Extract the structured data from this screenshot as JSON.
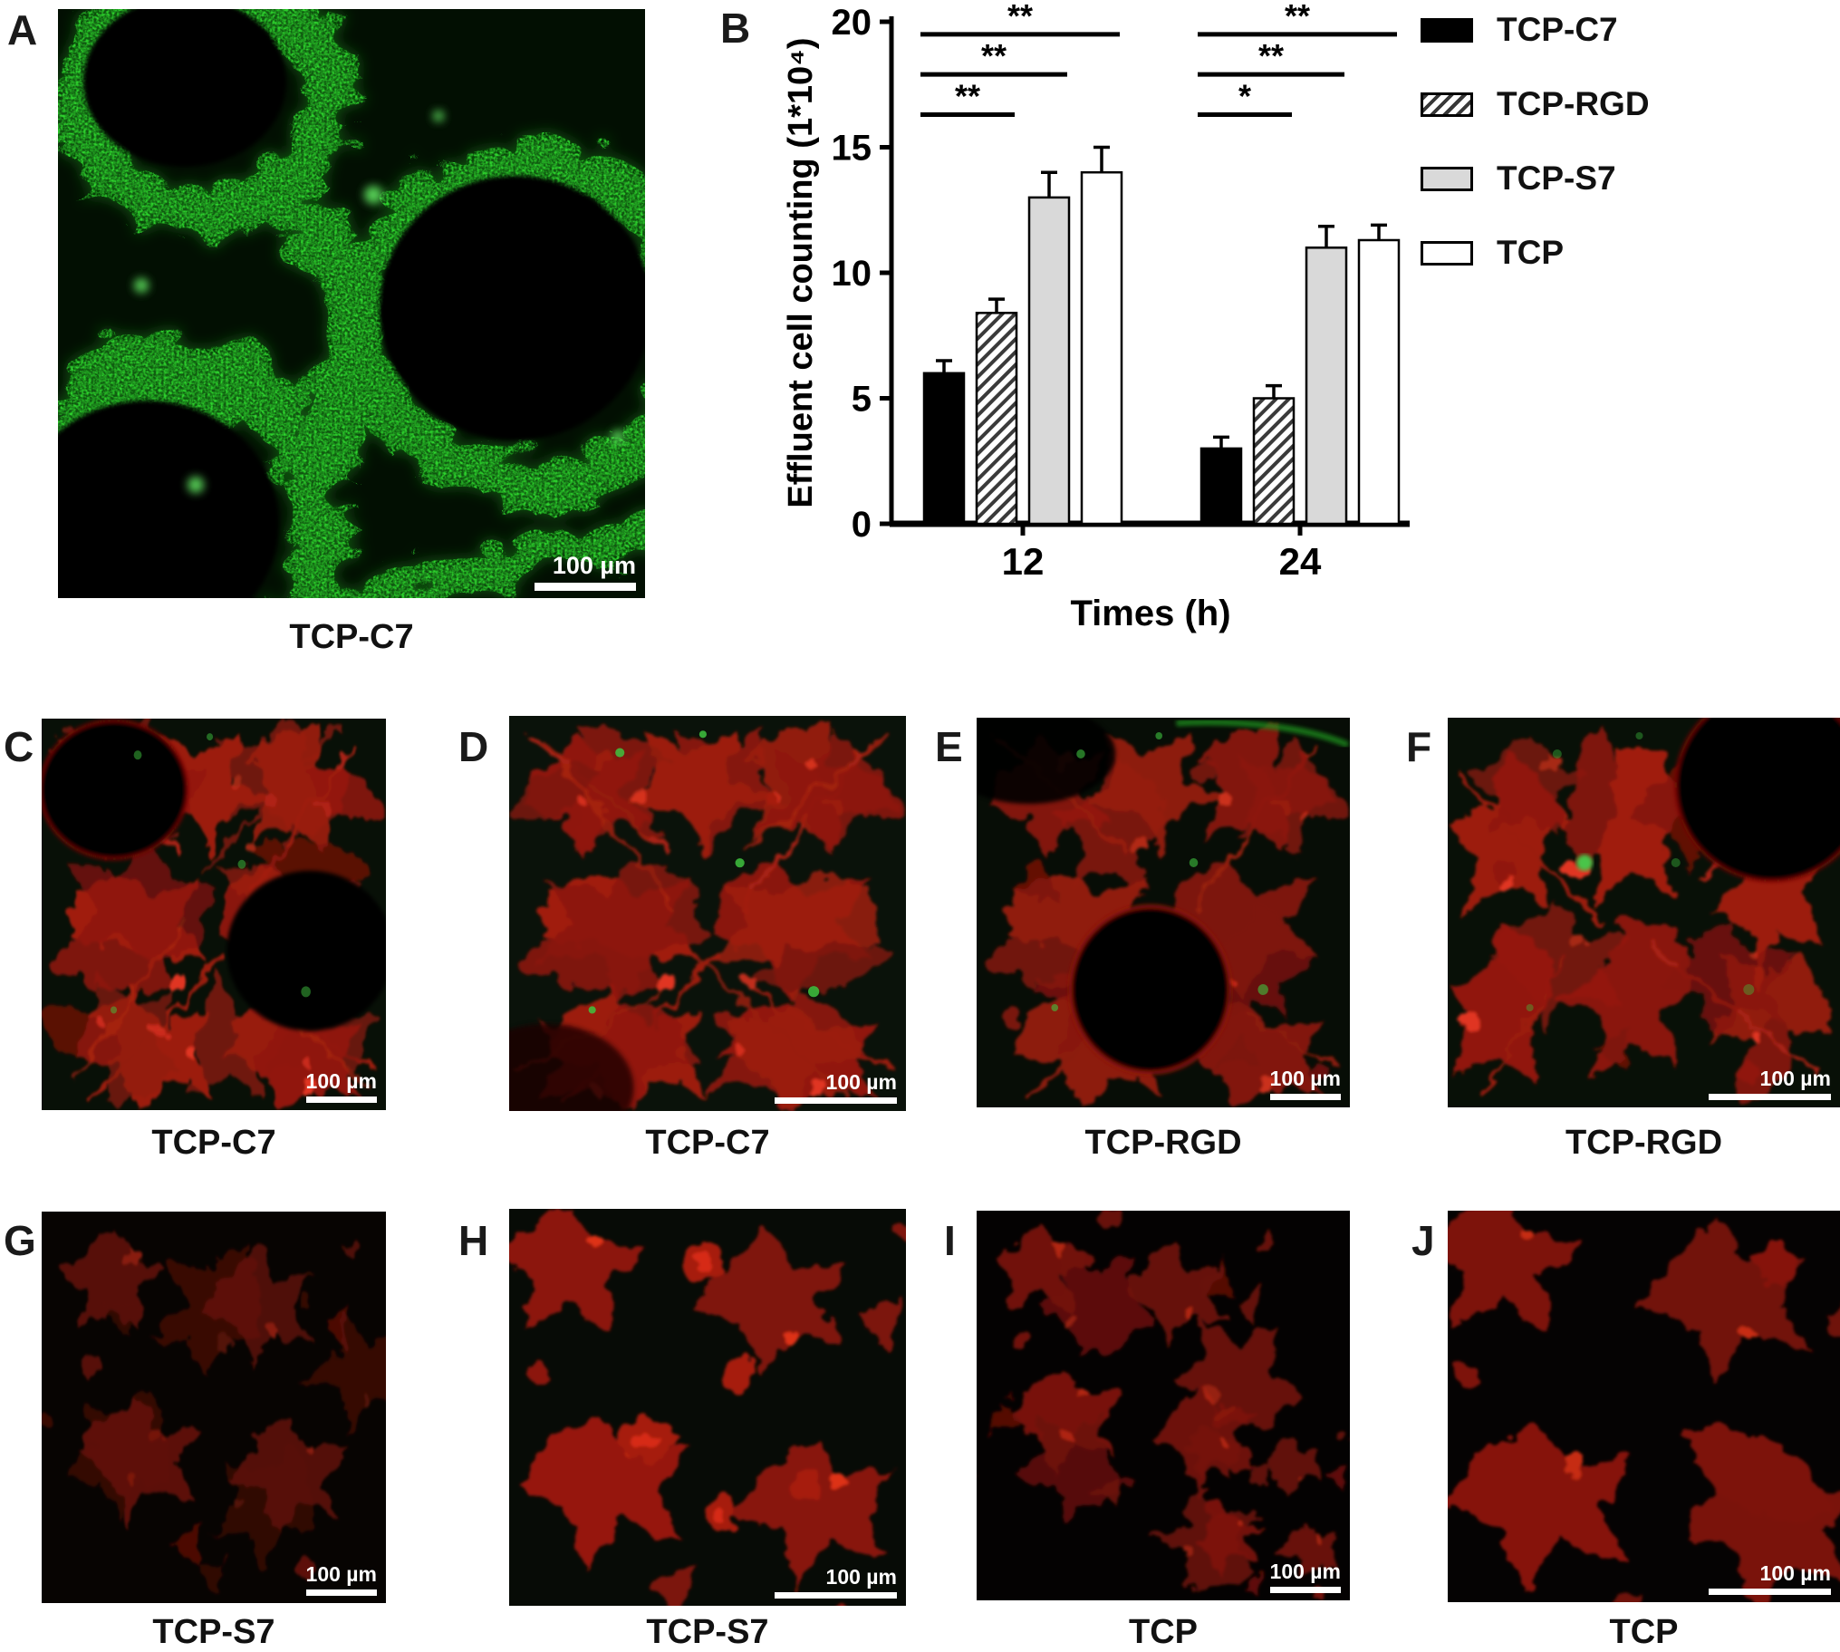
{
  "colors": {
    "green_signal": "#2fd32f",
    "red_signal": "#a01d0f",
    "bar_black": "#000000",
    "bar_hatch_stripe": "#3a3a3a",
    "bar_gray": "#d9d9d9",
    "bar_white": "#ffffff",
    "axis": "#000000",
    "scale_bar": "#ffffff"
  },
  "panel_a": {
    "label": "A",
    "caption": "TCP-C7",
    "scale_bar_text": "100 µm"
  },
  "chart": {
    "label": "B"
  },
  "micrograph_panels": [
    {
      "label": "C",
      "caption": "TCP-C7",
      "scale_bar_text": "100 µm"
    },
    {
      "label": "D",
      "caption": "TCP-C7",
      "scale_bar_text": "100 µm"
    },
    {
      "label": "E",
      "caption": "TCP-RGD",
      "scale_bar_text": "100 µm"
    },
    {
      "label": "F",
      "caption": "TCP-RGD",
      "scale_bar_text": "100 µm"
    },
    {
      "label": "G",
      "caption": "TCP-S7",
      "scale_bar_text": "100 µm"
    },
    {
      "label": "H",
      "caption": "TCP-S7",
      "scale_bar_text": "100 µm"
    },
    {
      "label": "I",
      "caption": "TCP",
      "scale_bar_text": "100 µm"
    },
    {
      "label": "J",
      "caption": "TCP",
      "scale_bar_text": "100 µm"
    }
  ],
  "chart_data": {
    "type": "bar",
    "title": "",
    "ylabel": "Effluent cell counting (1*10⁴)",
    "xlabel": "Times (h)",
    "ylim": [
      0,
      20
    ],
    "yticks": [
      0,
      5,
      10,
      15,
      20
    ],
    "categories": [
      "12",
      "24"
    ],
    "legend_position": "right",
    "grid": false,
    "series": [
      {
        "name": "TCP-C7",
        "fill": "#000000",
        "values": [
          6.0,
          3.0
        ],
        "errors": [
          0.5,
          0.45
        ]
      },
      {
        "name": "TCP-RGD",
        "fill": "hatch",
        "values": [
          8.4,
          5.0
        ],
        "errors": [
          0.55,
          0.5
        ]
      },
      {
        "name": "TCP-S7",
        "fill": "#d9d9d9",
        "values": [
          13.0,
          11.0
        ],
        "errors": [
          1.0,
          0.85
        ]
      },
      {
        "name": "TCP",
        "fill": "#ffffff",
        "values": [
          14.0,
          11.3
        ],
        "errors": [
          1.0,
          0.6
        ]
      }
    ],
    "significance": [
      {
        "group": 0,
        "from": 0,
        "to": 1,
        "label": "**",
        "y": 16.3
      },
      {
        "group": 0,
        "from": 0,
        "to": 2,
        "label": "**",
        "y": 17.9
      },
      {
        "group": 0,
        "from": 0,
        "to": 3,
        "label": "**",
        "y": 19.5
      },
      {
        "group": 1,
        "from": 0,
        "to": 1,
        "label": "*",
        "y": 16.3
      },
      {
        "group": 1,
        "from": 0,
        "to": 2,
        "label": "**",
        "y": 17.9
      },
      {
        "group": 1,
        "from": 0,
        "to": 3,
        "label": "**",
        "y": 19.5
      }
    ]
  }
}
